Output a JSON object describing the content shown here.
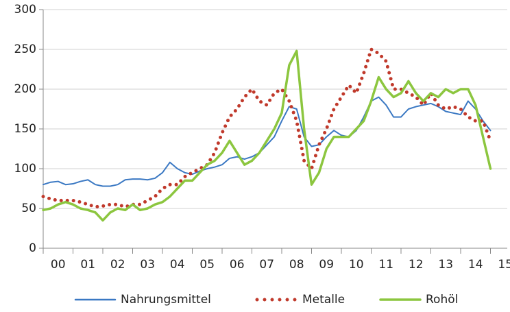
{
  "chart_data": {
    "type": "line",
    "x": [
      0,
      0.25,
      0.5,
      0.75,
      1,
      1.25,
      1.5,
      1.75,
      2,
      2.25,
      2.5,
      2.75,
      3,
      3.25,
      3.5,
      3.75,
      4,
      4.25,
      4.5,
      4.75,
      5,
      5.25,
      5.5,
      5.75,
      6,
      6.25,
      6.5,
      6.75,
      7,
      7.25,
      7.5,
      7.75,
      8,
      8.25,
      8.5,
      8.75,
      9,
      9.25,
      9.5,
      9.75,
      10,
      10.25,
      10.5,
      10.75,
      11,
      11.25,
      11.5,
      11.75,
      12,
      12.25,
      12.5,
      12.75,
      13,
      13.25,
      13.5,
      13.75,
      14,
      14.25,
      14.5,
      14.75,
      15
    ],
    "series": [
      {
        "name": "Nahrungsmittel",
        "color": "#3a78c3",
        "style": "solid",
        "values": [
          80,
          83,
          84,
          80,
          81,
          84,
          86,
          80,
          78,
          78,
          80,
          86,
          87,
          87,
          86,
          88,
          95,
          108,
          100,
          95,
          93,
          97,
          100,
          102,
          105,
          113,
          115,
          112,
          115,
          120,
          130,
          140,
          160,
          178,
          175,
          140,
          128,
          130,
          140,
          148,
          142,
          140,
          148,
          165,
          185,
          190,
          180,
          165,
          165,
          175,
          178,
          180,
          182,
          178,
          172,
          170,
          168,
          185,
          175,
          160,
          148
        ]
      },
      {
        "name": "Metalle",
        "color": "#c0392b",
        "style": "dotted",
        "values": [
          65,
          62,
          60,
          60,
          60,
          58,
          55,
          52,
          53,
          55,
          55,
          52,
          55,
          55,
          60,
          65,
          75,
          80,
          80,
          90,
          95,
          100,
          105,
          120,
          145,
          165,
          175,
          190,
          200,
          185,
          180,
          195,
          200,
          185,
          160,
          110,
          100,
          130,
          150,
          175,
          190,
          205,
          195,
          220,
          250,
          245,
          235,
          200,
          200,
          195,
          190,
          180,
          195,
          180,
          175,
          178,
          175,
          165,
          160,
          160,
          135
        ]
      },
      {
        "name": "Rohöl",
        "color": "#8cc63f",
        "style": "solid",
        "values": [
          48,
          50,
          55,
          58,
          55,
          50,
          48,
          45,
          35,
          45,
          50,
          48,
          55,
          48,
          50,
          55,
          58,
          65,
          75,
          85,
          85,
          95,
          105,
          110,
          120,
          135,
          120,
          105,
          110,
          120,
          135,
          150,
          170,
          230,
          248,
          150,
          80,
          95,
          125,
          140,
          140,
          140,
          150,
          160,
          185,
          215,
          200,
          190,
          195,
          210,
          195,
          185,
          195,
          190,
          200,
          195,
          200,
          200,
          180,
          140,
          100
        ]
      }
    ],
    "xlim": [
      0,
      15.5
    ],
    "xticks": [
      {
        "value": 0.5,
        "label": "00"
      },
      {
        "value": 1.5,
        "label": "01"
      },
      {
        "value": 2.5,
        "label": "02"
      },
      {
        "value": 3.5,
        "label": "03"
      },
      {
        "value": 4.5,
        "label": "04"
      },
      {
        "value": 5.5,
        "label": "05"
      },
      {
        "value": 6.5,
        "label": "06"
      },
      {
        "value": 7.5,
        "label": "07"
      },
      {
        "value": 8.5,
        "label": "08"
      },
      {
        "value": 9.5,
        "label": "09"
      },
      {
        "value": 10.5,
        "label": "10"
      },
      {
        "value": 11.5,
        "label": "11"
      },
      {
        "value": 12.5,
        "label": "12"
      },
      {
        "value": 13.5,
        "label": "13"
      },
      {
        "value": 14.5,
        "label": "14"
      },
      {
        "value": 15.5,
        "label": "15"
      }
    ],
    "ylim": [
      0,
      300
    ],
    "yticks": [
      0,
      50,
      100,
      150,
      200,
      250,
      300
    ],
    "grid": true,
    "legend": "bottom"
  }
}
